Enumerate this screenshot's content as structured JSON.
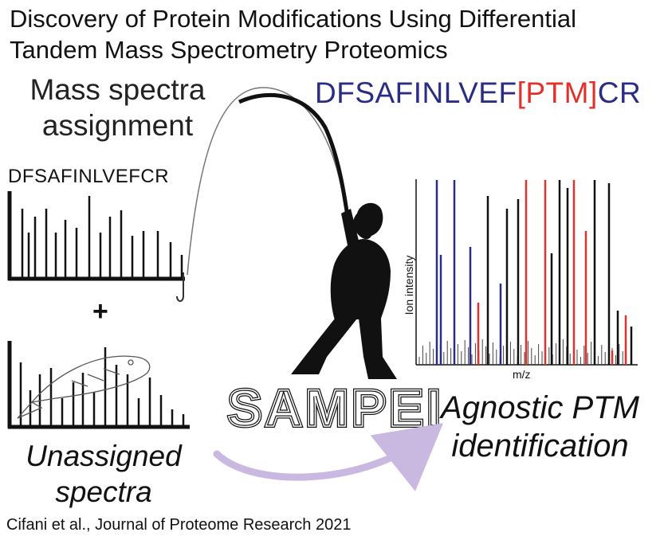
{
  "title_line1": "Discovery of Protein Modifications Using Differential",
  "title_line2": "Tandem Mass Spectrometry Proteomics",
  "mass_spectra_line1": "Mass spectra",
  "mass_spectra_line2": "assignment",
  "left_sequence": "DFSAFINLVEFCR",
  "right_sequence": {
    "part1": "DFSAFINLVEF",
    "ptm": "[PTM]",
    "part2": "CR"
  },
  "plus": "+",
  "unassigned_line1": "Unassigned",
  "unassigned_line2": "spectra",
  "logo_text": "SAMPEI",
  "agnostic_line1": "Agnostic PTM",
  "agnostic_line2": "identification",
  "axis_y": "Ion intensity",
  "axis_x": "m/z",
  "citation": "Cifani et al., Journal of Proteome Research 2021",
  "colors": {
    "blue": "#2b2d84",
    "red": "#e0322c",
    "arrow": "#c9b8e0",
    "black": "#111111"
  }
}
